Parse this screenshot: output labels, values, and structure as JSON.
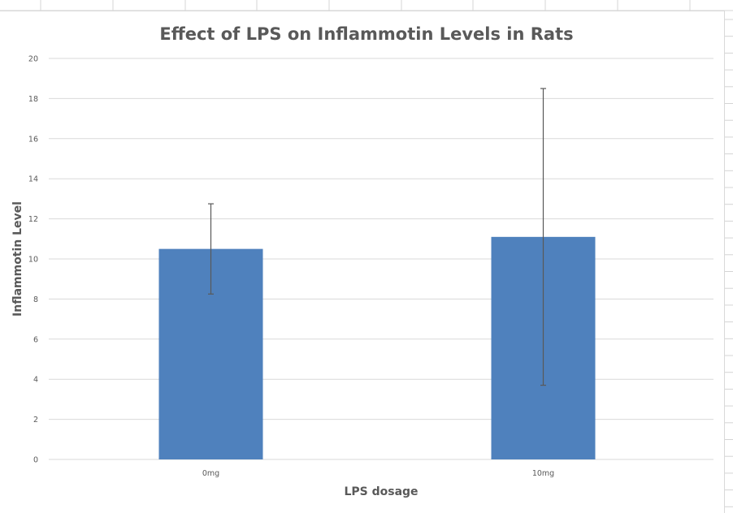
{
  "chart_data": {
    "type": "bar",
    "title": "Effect of LPS on Inflammotin Levels in Rats",
    "xlabel": "LPS dosage",
    "ylabel": "Inflammotin Level",
    "categories": [
      "0mg",
      "10mg"
    ],
    "values": [
      10.5,
      11.1
    ],
    "error_bars": [
      {
        "upper": 12.75,
        "lower": 8.25
      },
      {
        "upper": 18.5,
        "lower": 3.7
      }
    ],
    "ylim": [
      0,
      20
    ],
    "yticks": [
      0,
      2,
      4,
      6,
      8,
      10,
      12,
      14,
      16,
      18,
      20
    ],
    "ytick_labels": [
      "0",
      "2",
      "4",
      "6",
      "8",
      "10",
      "12",
      "14",
      "16",
      "18",
      "20"
    ],
    "grid": true,
    "legend": "none",
    "bar_color": "#4F81BD",
    "error_bar_color": "#595959",
    "gridline_color": "#d9d9d9"
  }
}
